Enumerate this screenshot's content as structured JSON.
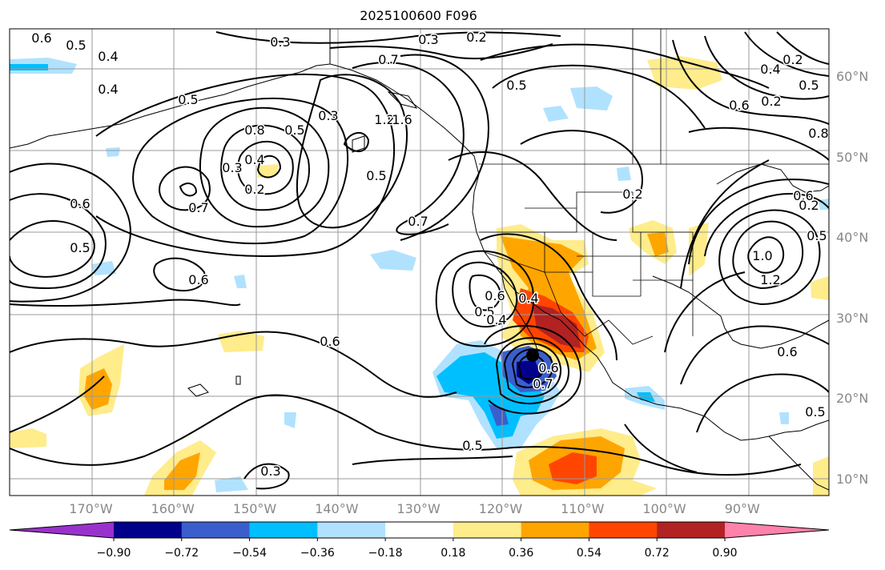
{
  "title": "2025100600 F096",
  "map": {
    "projection": "cylindrical",
    "lon_range": [
      -180,
      -80
    ],
    "lat_range": [
      8,
      66
    ],
    "lat_labels": [
      "60°N",
      "50°N",
      "40°N",
      "30°N",
      "20°N",
      "10°N"
    ],
    "lon_labels": [
      "170°W",
      "160°W",
      "150°W",
      "140°W",
      "130°W",
      "120°W",
      "110°W",
      "100°W",
      "90°W"
    ],
    "contour_labels": [
      "0.6",
      "0.5",
      "0.4",
      "0.4",
      "0.5",
      "0.3",
      "0.7",
      "0.3",
      "0.2",
      "0.8",
      "1.2",
      "1.6",
      "0.4",
      "0.5",
      "0.3",
      "0.2",
      "0.5",
      "0.6",
      "0.7",
      "0.5",
      "0.6",
      "0.7",
      "0.5",
      "0.6",
      "0.5",
      "0.2",
      "0.6",
      "0.5",
      "0.3",
      "0.3",
      "0.4",
      "0.6",
      "0.5",
      "0.2",
      "0.2",
      "0.8",
      "0.6",
      "0.5",
      "1.0",
      "1.2",
      "0.6",
      "0.5",
      "0.6",
      "0.7",
      "0.4",
      "0.4",
      "0.2"
    ],
    "storm_marker": "tropical-cyclone-center"
  },
  "colorbar": {
    "levels": [
      "−0.90",
      "−0.72",
      "−0.54",
      "−0.36",
      "−0.18",
      "0.18",
      "0.36",
      "0.54",
      "0.72",
      "0.90"
    ],
    "colors": [
      "#9932cc",
      "#00008b",
      "#3a5fcd",
      "#00bfff",
      "#b0e2ff",
      "#ffffff",
      "#ffec8b",
      "#ffa500",
      "#ff4500",
      "#b22222",
      "#ff82ab"
    ]
  }
}
